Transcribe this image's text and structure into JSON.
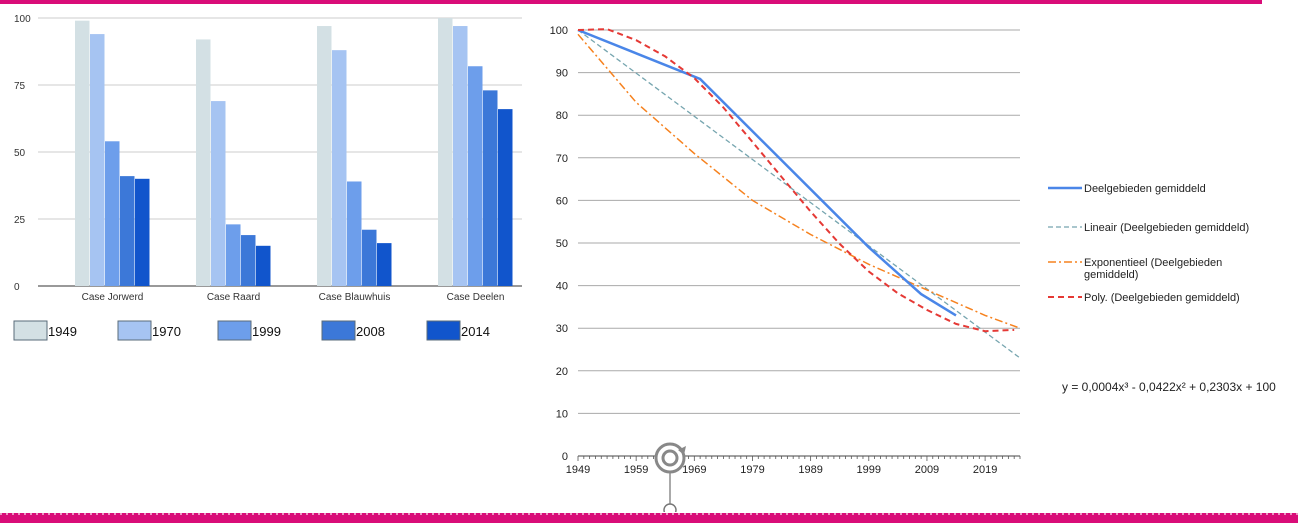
{
  "colors": {
    "accent": "#d90d78",
    "series": [
      "#d3e0e4",
      "#a6c4f2",
      "#6d9eeb",
      "#3c78d8",
      "#1155cc"
    ],
    "line_main": "#4a86e8",
    "line_lineair": "#76a5af",
    "line_exponentieel": "#f6821f",
    "line_poly": "#e53935"
  },
  "chart_data": [
    {
      "type": "bar",
      "categories": [
        "Case Jorwerd",
        "Case Raard",
        "Case Blauwhuis",
        "Case Deelen"
      ],
      "series": [
        {
          "name": "1949",
          "values": [
            99,
            92,
            97,
            100
          ]
        },
        {
          "name": "1970",
          "values": [
            94,
            69,
            88,
            97
          ]
        },
        {
          "name": "1999",
          "values": [
            54,
            23,
            39,
            82
          ]
        },
        {
          "name": "2008",
          "values": [
            41,
            19,
            21,
            73
          ]
        },
        {
          "name": "2014",
          "values": [
            40,
            15,
            16,
            66
          ]
        }
      ],
      "ylim": [
        0,
        100
      ],
      "yticks": [
        "0",
        "25",
        "50",
        "75",
        "100"
      ],
      "grid": true,
      "legend": "bottom"
    },
    {
      "type": "line",
      "xlim": [
        1949,
        2025
      ],
      "ylim": [
        0,
        100
      ],
      "xticks": [
        "1949",
        "1959",
        "1969",
        "1979",
        "1989",
        "1999",
        "2009",
        "2019"
      ],
      "yticks": [
        "0",
        "10",
        "20",
        "30",
        "40",
        "50",
        "60",
        "70",
        "80",
        "90",
        "100"
      ],
      "grid": true,
      "legend": "right",
      "series": [
        {
          "name": "Deelgebieden gemiddeld",
          "x": [
            1949,
            1970,
            1999,
            2008,
            2014
          ],
          "y": [
            100,
            88.5,
            49,
            38,
            33
          ]
        },
        {
          "name": "Lineair (Deelgebieden gemiddeld)",
          "x": [
            1949,
            2025
          ],
          "y": [
            100,
            23
          ],
          "style": "dashed"
        },
        {
          "name": "Exponentieel (Deelgebieden gemiddeld)",
          "x": [
            1949,
            1959,
            1969,
            1979,
            1989,
            1999,
            2009,
            2019,
            2025
          ],
          "y": [
            99,
            83,
            71,
            60,
            52,
            45,
            39,
            33,
            30
          ],
          "style": "dashdot"
        },
        {
          "name": "Poly. (Deelgebieden gemiddeld)",
          "x": [
            1949,
            1954,
            1959,
            1964,
            1969,
            1974,
            1979,
            1984,
            1989,
            1994,
            1999,
            2004,
            2009,
            2014,
            2019,
            2024
          ],
          "y": [
            100,
            100.2,
            97.6,
            93.8,
            88.7,
            81.8,
            73.7,
            65.5,
            57.4,
            49.8,
            43.3,
            38.2,
            34.3,
            31.0,
            29.3,
            29.6
          ],
          "style": "dashed"
        }
      ],
      "annotation": "y = 0,0004x³ - 0,0422x² + 0,2303x + 100"
    }
  ]
}
